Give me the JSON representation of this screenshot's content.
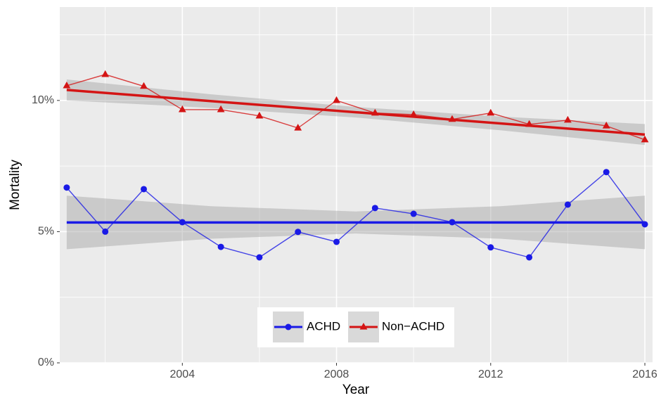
{
  "chart_data": {
    "type": "line",
    "x_label": "Year",
    "y_label": "Mortality",
    "x": [
      2001,
      2002,
      2003,
      2004,
      2005,
      2006,
      2007,
      2008,
      2009,
      2010,
      2011,
      2012,
      2013,
      2014,
      2015,
      2016
    ],
    "xlim": [
      2000.82,
      2016.2
    ],
    "xticks": [
      2004,
      2008,
      2012,
      2016
    ],
    "ylim": [
      0,
      13.56
    ],
    "yticks": [
      {
        "value": 0,
        "label": "0%"
      },
      {
        "value": 5,
        "label": "5%"
      },
      {
        "value": 10,
        "label": "10%"
      }
    ],
    "grid": true,
    "legend": "bottom",
    "series": [
      {
        "name": "ACHD",
        "color": "#1a1ae6",
        "marker": "circle",
        "values": [
          6.68,
          5.0,
          6.62,
          5.36,
          4.42,
          4.02,
          4.99,
          4.61,
          5.9,
          5.68,
          5.36,
          4.4,
          4.02,
          6.03,
          7.27,
          5.28
        ],
        "trend": {
          "x": [
            2001,
            2016
          ],
          "values": [
            5.35,
            5.35
          ]
        },
        "band": {
          "x": [
            2001,
            2004.75,
            2008.5,
            2012.25,
            2016
          ],
          "lower": [
            4.33,
            4.73,
            4.93,
            4.73,
            4.33
          ],
          "upper": [
            6.37,
            5.97,
            5.77,
            5.97,
            6.37
          ]
        }
      },
      {
        "name": "Non−ACHD",
        "color": "#d41414",
        "marker": "triangle",
        "values": [
          10.56,
          10.99,
          10.54,
          9.65,
          9.65,
          9.41,
          8.95,
          10.0,
          9.52,
          9.46,
          9.28,
          9.52,
          9.09,
          9.25,
          9.03,
          8.5
        ],
        "trend": {
          "x": [
            2001,
            2016
          ],
          "values": [
            10.4,
            8.7
          ]
        },
        "band": {
          "x": [
            2001,
            2004.75,
            2008.5,
            2012.25,
            2016
          ],
          "lower": [
            10.0,
            9.715,
            9.35,
            8.865,
            8.3
          ],
          "upper": [
            10.8,
            10.235,
            9.75,
            9.385,
            9.1
          ]
        }
      }
    ]
  }
}
